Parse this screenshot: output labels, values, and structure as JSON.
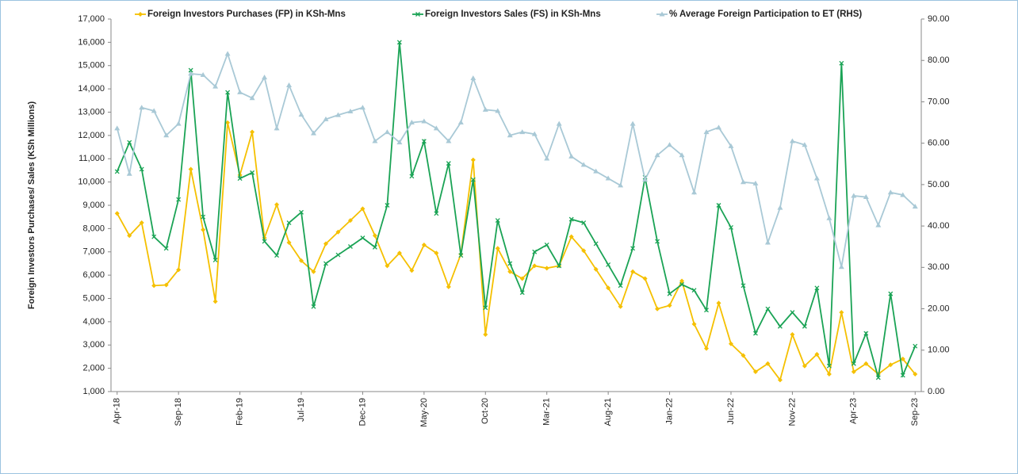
{
  "chart_data": {
    "type": "line",
    "y_label": "Foreign Investors Purchases/ Sales (KSh Millions)",
    "categories": [
      "Apr-18",
      null,
      null,
      null,
      null,
      "Sep-18",
      null,
      null,
      null,
      null,
      "Feb-19",
      null,
      null,
      null,
      null,
      "Jul-19",
      null,
      null,
      null,
      null,
      "Dec-19",
      null,
      null,
      null,
      null,
      "May-20",
      null,
      null,
      null,
      null,
      "Oct-20",
      null,
      null,
      null,
      null,
      "Mar-21",
      null,
      null,
      null,
      null,
      "Aug-21",
      null,
      null,
      null,
      null,
      "Jan-22",
      null,
      null,
      null,
      null,
      "Jun-22",
      null,
      null,
      null,
      null,
      "Nov-22",
      null,
      null,
      null,
      null,
      "Apr-23",
      null,
      null,
      null,
      null,
      "Sep-23"
    ],
    "series": [
      {
        "name": "Foreign Investors Purchases (FP) in KSh-Mns",
        "color": "#f5c000",
        "marker": "diamond",
        "values": [
          8650,
          7700,
          8250,
          5550,
          5580,
          6230,
          10550,
          7950,
          4870,
          12550,
          10300,
          12150,
          7600,
          9030,
          7400,
          6620,
          6150,
          7350,
          7850,
          8350,
          8850,
          7700,
          6400,
          6950,
          6200,
          7300,
          6950,
          5500,
          6900,
          10950,
          3450,
          7150,
          6150,
          5850,
          6400,
          6300,
          6400,
          7650,
          7050,
          6250,
          5450,
          4650,
          6150,
          5850,
          4550,
          4700,
          5750,
          3900,
          2850,
          4800,
          3050,
          2550,
          1850,
          2200,
          1500,
          3450,
          2100,
          2600,
          1750,
          4400,
          1850,
          2200,
          1750,
          2150,
          2400,
          1750
        ]
      },
      {
        "name": "Foreign Investors Sales (FS) in KSh-Mns",
        "color": "#1aa355",
        "marker": "cross",
        "values": [
          10450,
          11700,
          10550,
          7650,
          7150,
          9250,
          14800,
          8500,
          6650,
          13850,
          10150,
          10400,
          7450,
          6850,
          8250,
          8700,
          4650,
          6500,
          6870,
          7230,
          7600,
          7200,
          9000,
          16000,
          10250,
          11750,
          8650,
          10800,
          6850,
          10100,
          4600,
          8350,
          6500,
          5250,
          7000,
          7300,
          6400,
          8400,
          8250,
          7350,
          6450,
          5550,
          7150,
          10200,
          7450,
          5200,
          5600,
          5350,
          4500,
          9000,
          8050,
          5550,
          3500,
          4550,
          3800,
          4400,
          3800,
          5450,
          2100,
          15100,
          2200,
          3500,
          1600,
          5200,
          1700,
          2950
        ]
      },
      {
        "name": "% Average Foreign Participation to ET (RHS)",
        "color": "#a9c9d6",
        "marker": "triangle",
        "axis": "y2",
        "values": [
          63.6,
          52.6,
          68.6,
          67.8,
          61.9,
          64.7,
          76.8,
          76.5,
          73.7,
          81.6,
          72.3,
          70.9,
          75.9,
          63.6,
          74.0,
          66.9,
          62.4,
          65.8,
          66.8,
          67.7,
          68.6,
          60.5,
          62.7,
          60.2,
          65.0,
          65.3,
          63.6,
          60.5,
          65.0,
          75.7,
          68.1,
          67.8,
          61.9,
          62.7,
          62.2,
          56.3,
          64.7,
          56.8,
          54.8,
          53.2,
          51.5,
          49.8,
          64.7,
          51.2,
          57.1,
          59.6,
          57.1,
          48.1,
          62.7,
          63.8,
          59.3,
          50.6,
          50.3,
          36.0,
          44.4,
          60.5,
          59.6,
          51.5,
          41.9,
          30.1,
          47.3,
          47.0,
          40.2,
          48.1,
          47.5,
          44.7
        ]
      }
    ],
    "ylim": [
      1000,
      17000
    ],
    "yticks": [
      {
        "value": 1000,
        "label": "1,000"
      },
      {
        "value": 2000,
        "label": "2,000"
      },
      {
        "value": 3000,
        "label": "3,000"
      },
      {
        "value": 4000,
        "label": "4,000"
      },
      {
        "value": 5000,
        "label": "5,000"
      },
      {
        "value": 6000,
        "label": "6,000"
      },
      {
        "value": 7000,
        "label": "7,000"
      },
      {
        "value": 8000,
        "label": "8,000"
      },
      {
        "value": 9000,
        "label": "9,000"
      },
      {
        "value": 10000,
        "label": "10,000"
      },
      {
        "value": 11000,
        "label": "11,000"
      },
      {
        "value": 12000,
        "label": "12,000"
      },
      {
        "value": 13000,
        "label": "13,000"
      },
      {
        "value": 14000,
        "label": "14,000"
      },
      {
        "value": 15000,
        "label": "15,000"
      },
      {
        "value": 16000,
        "label": "16,000"
      },
      {
        "value": 17000,
        "label": "17,000"
      }
    ],
    "y2lim": [
      0,
      90
    ],
    "y2ticks": [
      {
        "value": 0,
        "label": "0.00"
      },
      {
        "value": 10,
        "label": "10.00"
      },
      {
        "value": 20,
        "label": "20.00"
      },
      {
        "value": 30,
        "label": "30.00"
      },
      {
        "value": 40,
        "label": "40.00"
      },
      {
        "value": 50,
        "label": "50.00"
      },
      {
        "value": 60,
        "label": "60.00"
      },
      {
        "value": 70,
        "label": "70.00"
      },
      {
        "value": 80,
        "label": "80.00"
      },
      {
        "value": 90,
        "label": "90.00"
      }
    ],
    "legend": "top"
  }
}
